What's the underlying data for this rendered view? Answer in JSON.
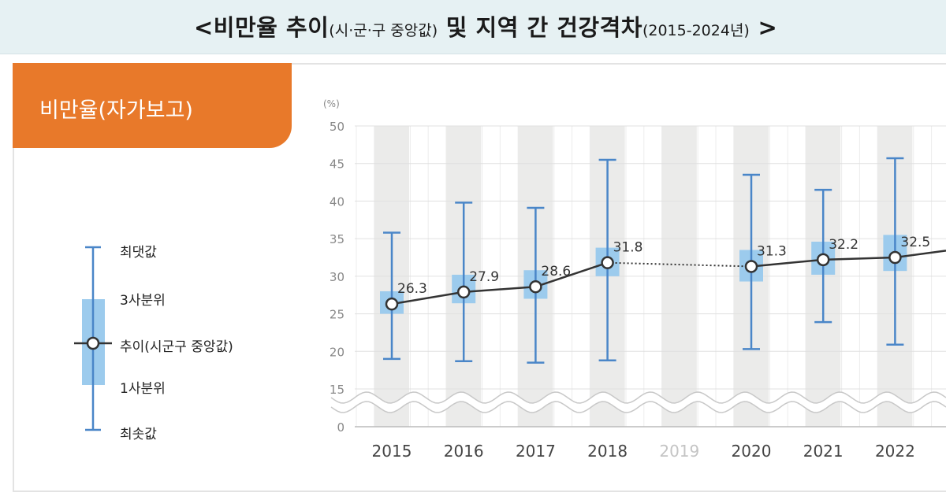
{
  "title": {
    "main1": "<비만율 추이",
    "sub1": "(시·군·구 중앙값)",
    "main2": "및 지역 간 건강격차",
    "sub2": "(2015-2024년)",
    "close": ">"
  },
  "tag": {
    "label": "비만율(자가보고)"
  },
  "legend": {
    "max": "최댓값",
    "q3": "3사분위",
    "trend": "추이(시군구 중앙값)",
    "q1": "1사분위",
    "min": "최솟값"
  },
  "colors": {
    "accent": "#e8792a",
    "box": "#9ccbed",
    "whisker": "#4a86c8",
    "line": "#333333",
    "bg_band": "#ebebea",
    "title_bg": "#e6f1f3"
  },
  "chart_data": {
    "type": "boxplot-line",
    "y_unit": "(%)",
    "y_ticks": [
      "50",
      "45",
      "40",
      "35",
      "30",
      "25",
      "20",
      "15",
      "0"
    ],
    "ylim": [
      0,
      50
    ],
    "axis_break": "between 0 and 15",
    "categories": [
      "2015",
      "2016",
      "2017",
      "2018",
      "2019",
      "2020",
      "2021",
      "2022"
    ],
    "median": [
      26.3,
      27.9,
      28.6,
      31.8,
      null,
      31.3,
      32.2,
      32.5
    ],
    "median_labels": [
      "26.3",
      "27.9",
      "28.6",
      "31.8",
      "",
      "31.3",
      "32.2",
      "32.5"
    ],
    "q1": [
      25.0,
      26.4,
      27.0,
      30.0,
      null,
      29.3,
      30.2,
      30.7
    ],
    "q3": [
      28.0,
      30.2,
      30.8,
      33.8,
      null,
      33.5,
      34.6,
      35.5
    ],
    "min": [
      19.0,
      18.7,
      18.5,
      18.8,
      null,
      20.3,
      23.9,
      20.9
    ],
    "max": [
      35.8,
      39.8,
      39.1,
      45.5,
      null,
      43.5,
      41.5,
      45.7
    ],
    "missing_year": "2019",
    "continuation": 33.4
  }
}
